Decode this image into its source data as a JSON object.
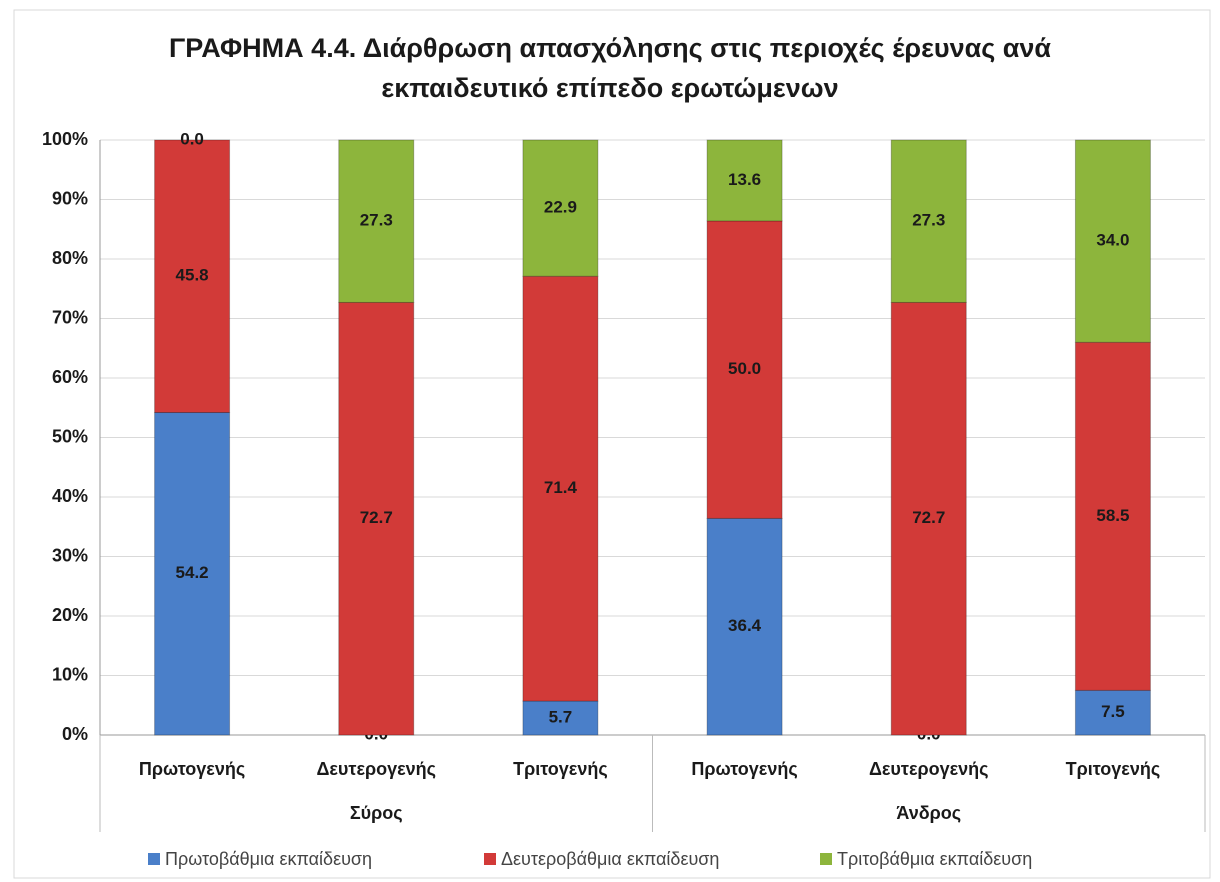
{
  "chart_data": {
    "type": "stacked_bar",
    "title": [
      "ΓΡΑΦΗΜΑ 4.4. Διάρθρωση απασχόλησης στις περιοχές έρευνας ανά",
      "εκπαιδευτικό επίπεδο ερωτώμενων"
    ],
    "groups": [
      {
        "name": "Σύρος",
        "categories": [
          "Πρωτογενής",
          "Δευτερογενής",
          "Τριτογενής"
        ]
      },
      {
        "name": "Άνδρος",
        "categories": [
          "Πρωτογενής",
          "Δευτερογενής",
          "Τριτογενής"
        ]
      }
    ],
    "series": [
      {
        "name": "Πρωτοβάθμια εκπαίδευση",
        "color": "#4a7fc9",
        "values": [
          54.2,
          0,
          5.7,
          36.4,
          0,
          7.5
        ],
        "value_labels": [
          "54.2",
          "0.0",
          "5.7",
          "36.4",
          "0.0",
          "7.5"
        ]
      },
      {
        "name": "Δευτεροβάθμια εκπαίδευση",
        "color": "#d23a38",
        "values": [
          45.8,
          72.7,
          71.4,
          50,
          72.7,
          58.5
        ],
        "value_labels": [
          "45.8",
          "72.7",
          "71.4",
          "50.0",
          "72.7",
          "58.5"
        ]
      },
      {
        "name": "Τριτοβάθμια εκπαίδευση",
        "color": "#8db53c",
        "values": [
          0,
          27.3,
          22.9,
          13.6,
          27.3,
          34
        ],
        "value_labels": [
          "0.0",
          "27.3",
          "22.9",
          "13.6",
          "27.3",
          "34.0"
        ]
      }
    ],
    "ylim": [
      0,
      100
    ],
    "yticks": [
      {
        "value": 0,
        "label": "0%"
      },
      {
        "value": 10,
        "label": "10%"
      },
      {
        "value": 20,
        "label": "20%"
      },
      {
        "value": 30,
        "label": "30%"
      },
      {
        "value": 40,
        "label": "40%"
      },
      {
        "value": 50,
        "label": "50%"
      },
      {
        "value": 60,
        "label": "60%"
      },
      {
        "value": 70,
        "label": "70%"
      },
      {
        "value": 80,
        "label": "80%"
      },
      {
        "value": 90,
        "label": "90%"
      },
      {
        "value": 100,
        "label": "100%"
      }
    ],
    "grid": true,
    "legend": "bottom"
  }
}
